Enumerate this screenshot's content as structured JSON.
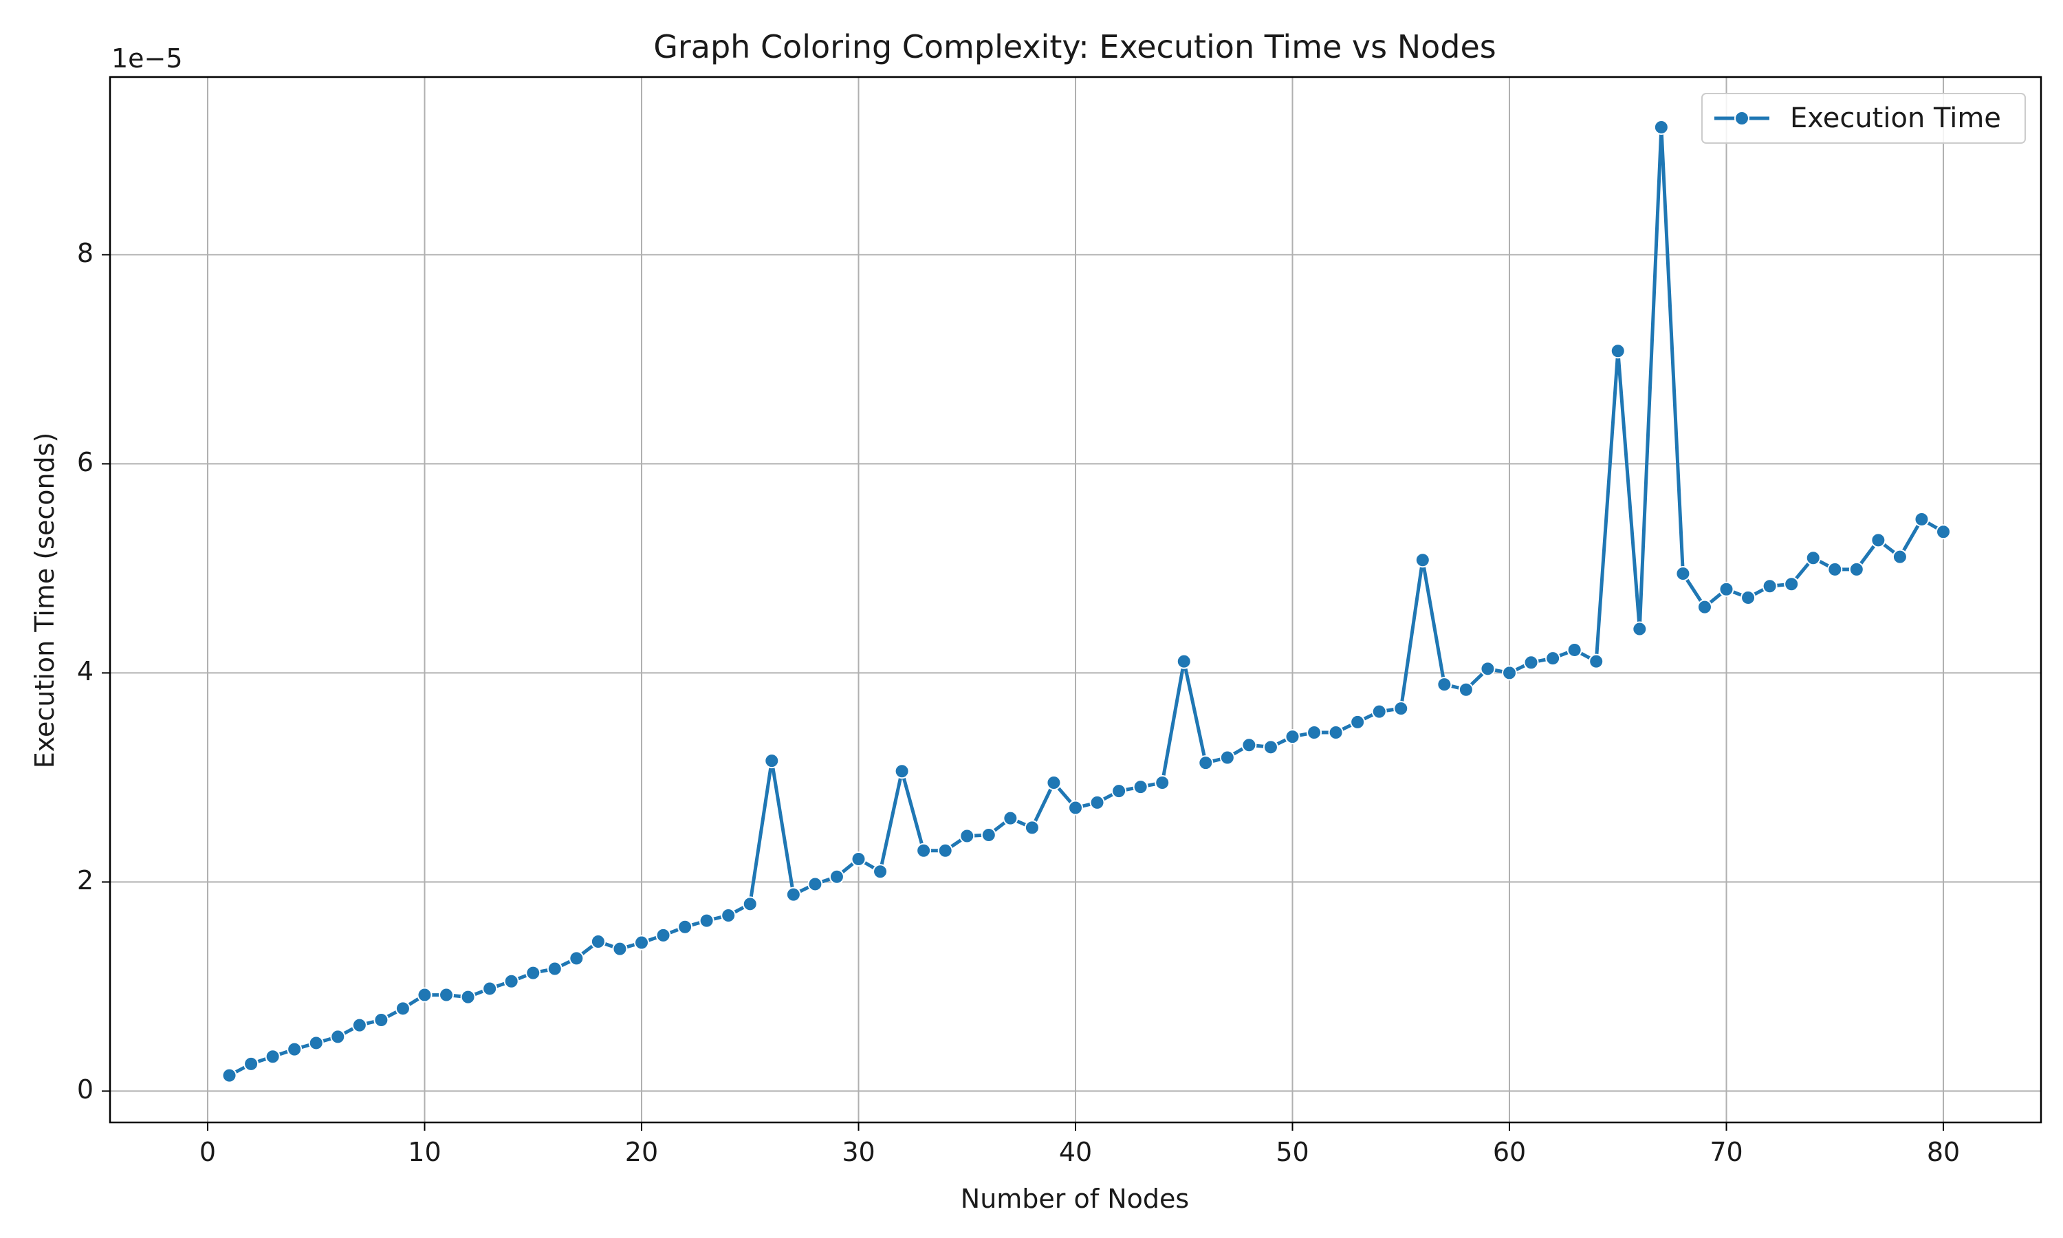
{
  "chart_data": {
    "type": "line",
    "title": "Graph Coloring Complexity: Execution Time vs Nodes",
    "xlabel": "Number of Nodes",
    "ylabel": "Execution Time (seconds)",
    "y_offset_label": "1e−5",
    "y_scale_factor": 1e-05,
    "xlim": [
      -4.5,
      84.5
    ],
    "ylim": [
      -0.3,
      9.7
    ],
    "x_ticks": [
      0,
      10,
      20,
      30,
      40,
      50,
      60,
      70,
      80
    ],
    "y_ticks": [
      0,
      2,
      4,
      6,
      8
    ],
    "x_tick_labels": [
      "0",
      "10",
      "20",
      "30",
      "40",
      "50",
      "60",
      "70",
      "80"
    ],
    "y_tick_labels": [
      "0",
      "2",
      "4",
      "6",
      "8"
    ],
    "grid": true,
    "legend_position": "top-right",
    "series": [
      {
        "name": "Execution Time",
        "color": "#1f77b4",
        "marker": "circle",
        "x": [
          1,
          2,
          3,
          4,
          5,
          6,
          7,
          8,
          9,
          10,
          11,
          12,
          13,
          14,
          15,
          16,
          17,
          18,
          19,
          20,
          21,
          22,
          23,
          24,
          25,
          26,
          27,
          28,
          29,
          30,
          31,
          32,
          33,
          34,
          35,
          36,
          37,
          38,
          39,
          40,
          41,
          42,
          43,
          44,
          45,
          46,
          47,
          48,
          49,
          50,
          51,
          52,
          53,
          54,
          55,
          56,
          57,
          58,
          59,
          60,
          61,
          62,
          63,
          64,
          65,
          66,
          67,
          68,
          69,
          70,
          71,
          72,
          73,
          74,
          75,
          76,
          77,
          78,
          79,
          80
        ],
        "y": [
          0.15,
          0.26,
          0.33,
          0.4,
          0.46,
          0.52,
          0.63,
          0.68,
          0.79,
          0.92,
          0.92,
          0.9,
          0.98,
          1.05,
          1.13,
          1.17,
          1.27,
          1.43,
          1.36,
          1.42,
          1.49,
          1.57,
          1.63,
          1.68,
          1.79,
          3.16,
          1.88,
          1.98,
          2.05,
          2.22,
          2.1,
          3.06,
          2.3,
          2.3,
          2.44,
          2.45,
          2.61,
          2.52,
          2.95,
          2.71,
          2.76,
          2.87,
          2.91,
          2.95,
          4.11,
          3.14,
          3.19,
          3.31,
          3.29,
          3.39,
          3.43,
          3.43,
          3.53,
          3.63,
          3.66,
          5.08,
          3.89,
          3.84,
          4.04,
          4.0,
          4.1,
          4.14,
          4.22,
          4.11,
          7.08,
          4.42,
          9.22,
          4.95,
          4.63,
          4.8,
          4.72,
          4.83,
          4.85,
          5.1,
          4.99,
          4.99,
          5.27,
          5.11,
          5.47,
          5.35
        ]
      }
    ]
  }
}
